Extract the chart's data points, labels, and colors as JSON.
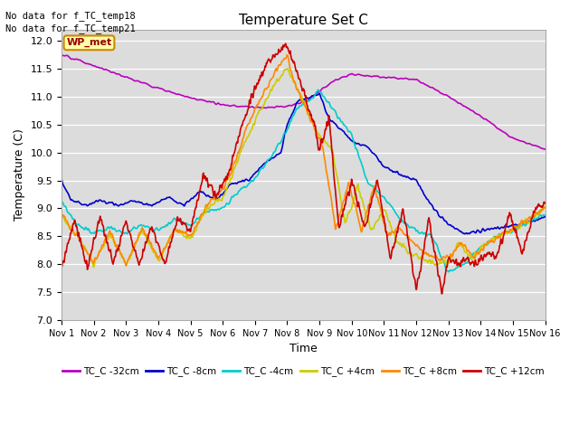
{
  "title": "Temperature Set C",
  "xlabel": "Time",
  "ylabel": "Temperature (C)",
  "ylim": [
    7.0,
    12.2
  ],
  "yticks": [
    7.0,
    7.5,
    8.0,
    8.5,
    9.0,
    9.5,
    10.0,
    10.5,
    11.0,
    11.5,
    12.0
  ],
  "note1": "No data for f_TC_temp18",
  "note2": "No data for f_TC_temp21",
  "wp_met_label": "WP_met",
  "bg_color": "#dcdcdc",
  "lines": {
    "TC_C -32cm": {
      "color": "#bb00bb",
      "lw": 1.2
    },
    "TC_C -8cm": {
      "color": "#0000cc",
      "lw": 1.2
    },
    "TC_C -4cm": {
      "color": "#00cccc",
      "lw": 1.2
    },
    "TC_C +4cm": {
      "color": "#cccc00",
      "lw": 1.2
    },
    "TC_C +8cm": {
      "color": "#ff8800",
      "lw": 1.2
    },
    "TC_C +12cm": {
      "color": "#cc0000",
      "lw": 1.2
    }
  },
  "xtick_labels": [
    "Nov 1",
    "Nov 2",
    "Nov 3",
    "Nov 4",
    "Nov 5",
    "Nov 6",
    "Nov 7",
    "Nov 8",
    "Nov 9",
    "Nov 10",
    "Nov 11",
    "Nov 12",
    "Nov 13",
    "Nov 14",
    "Nov 15",
    "Nov 16"
  ]
}
